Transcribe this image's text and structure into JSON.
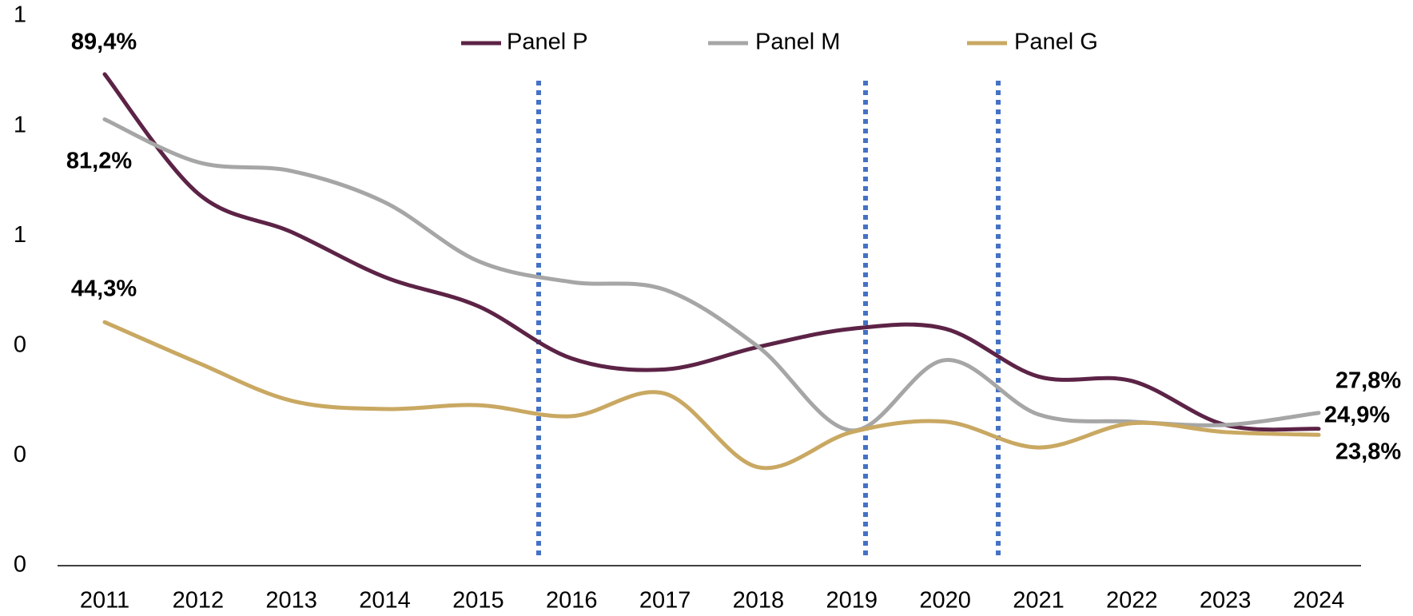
{
  "chart_data": {
    "type": "line",
    "categories": [
      "2011",
      "2012",
      "2013",
      "2014",
      "2015",
      "2016",
      "2017",
      "2018",
      "2019",
      "2020",
      "2021",
      "2022",
      "2023",
      "2024"
    ],
    "ylim": [
      0,
      1
    ],
    "yticks": [
      0,
      {
        "value": 0.2,
        "label": "0"
      },
      {
        "value": 0.4,
        "label": "0"
      },
      {
        "value": 0.6,
        "label": "1"
      },
      {
        "value": 0.8,
        "label": "1"
      },
      1
    ],
    "legend": "top",
    "series": [
      {
        "name": "Panel P",
        "color": "#5c2346",
        "values": [
          0.894,
          0.677,
          0.607,
          0.525,
          0.472,
          0.377,
          0.357,
          0.398,
          0.431,
          0.431,
          0.344,
          0.336,
          0.256,
          0.249
        ],
        "value_labels": [
          "89,4%",
          null,
          null,
          null,
          null,
          null,
          null,
          null,
          null,
          null,
          null,
          null,
          null,
          "24,9%"
        ]
      },
      {
        "name": "Panel M",
        "color": "#a6a6a6",
        "values": [
          0.812,
          0.734,
          0.718,
          0.661,
          0.554,
          0.516,
          0.502,
          0.398,
          0.246,
          0.374,
          0.275,
          0.262,
          0.256,
          0.278
        ],
        "value_labels": [
          "81,2%",
          null,
          null,
          null,
          null,
          null,
          null,
          null,
          null,
          null,
          null,
          null,
          null,
          "27,8%"
        ]
      },
      {
        "name": "Panel G",
        "color": "#c9a862",
        "values": [
          0.443,
          0.369,
          0.3,
          0.285,
          0.292,
          0.272,
          0.313,
          0.179,
          0.243,
          0.262,
          0.215,
          0.259,
          0.243,
          0.238
        ],
        "value_labels": [
          "44,3%",
          null,
          null,
          null,
          null,
          null,
          null,
          null,
          null,
          null,
          null,
          null,
          null,
          "23,8%"
        ]
      }
    ]
  }
}
